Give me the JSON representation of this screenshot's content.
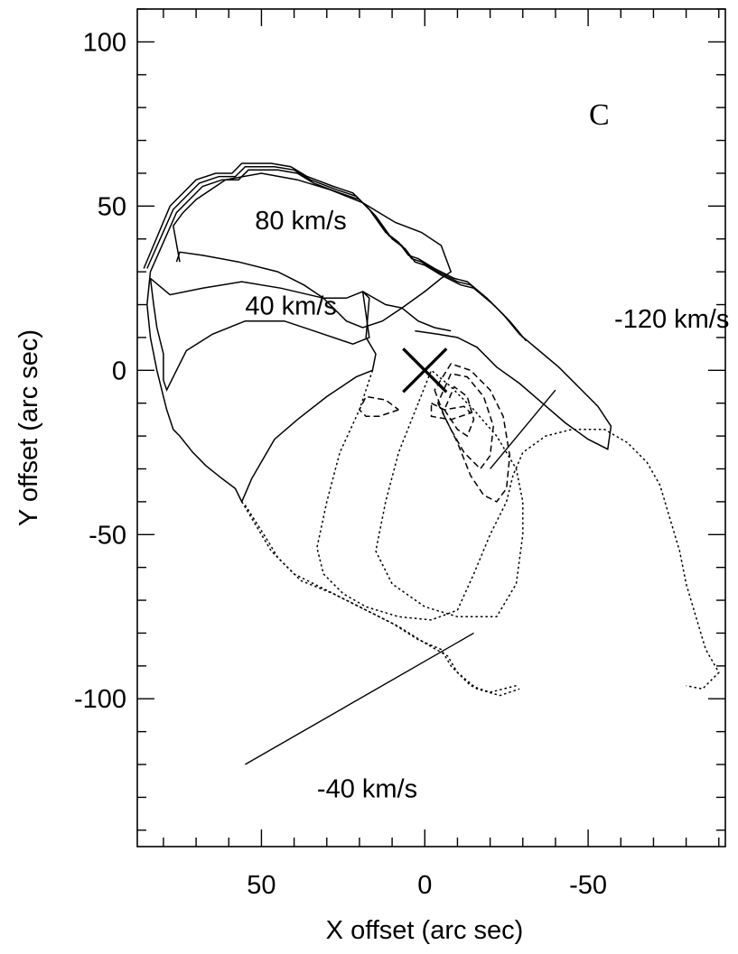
{
  "chart_data": {
    "type": "contour",
    "panel_label": "C",
    "xlabel": "X offset (arc sec)",
    "ylabel": "Y offset (arc sec)",
    "x_reversed": true,
    "xlim": [
      88,
      -92
    ],
    "ylim": [
      -145,
      110
    ],
    "x_ticks": [
      50,
      0,
      -50
    ],
    "x_tick_labels": [
      "50",
      "0",
      "-50"
    ],
    "y_ticks": [
      100,
      50,
      0,
      -50,
      -100
    ],
    "y_tick_labels": [
      "100",
      "50",
      "0",
      "-50",
      "-100"
    ],
    "source_marker": {
      "x": 0,
      "y": 0,
      "symbol": "X"
    },
    "annotations": [
      {
        "text": "80 km/s",
        "x": 52,
        "y": 43
      },
      {
        "text": "40 km/s",
        "x": 55,
        "y": 17
      },
      {
        "text": "-120 km/s",
        "x": -58,
        "y": 13
      },
      {
        "text": "-40 km/s",
        "x": 33,
        "y": -130
      }
    ],
    "leader_lines": [
      {
        "for": "-120 km/s",
        "from": [
          -40,
          -6
        ],
        "to": [
          -20,
          -30
        ]
      },
      {
        "for": "-40 km/s",
        "from": [
          55,
          -120
        ],
        "to": [
          -15,
          -80
        ]
      }
    ],
    "contours": [
      {
        "group": "positive",
        "style": "solid",
        "points": [
          [
            86,
            31
          ],
          [
            78,
            50
          ],
          [
            70,
            58
          ],
          [
            64,
            60
          ],
          [
            59,
            60
          ],
          [
            56,
            63
          ],
          [
            52,
            63
          ],
          [
            47,
            63
          ],
          [
            41,
            62
          ],
          [
            36,
            59
          ],
          [
            28,
            56
          ],
          [
            22,
            54
          ],
          [
            17,
            49
          ],
          [
            12,
            42
          ],
          [
            8,
            39
          ],
          [
            5,
            35
          ],
          [
            2,
            34
          ],
          [
            -3,
            31
          ],
          [
            -9,
            28
          ],
          [
            -13,
            27
          ],
          [
            -19,
            22
          ],
          [
            -24,
            17
          ],
          [
            -29,
            11
          ],
          [
            -35,
            6
          ],
          [
            -41,
            1
          ],
          [
            -48,
            -6
          ],
          [
            -53,
            -11
          ],
          [
            -57,
            -17
          ],
          [
            -56,
            -24
          ],
          [
            -50,
            -21
          ],
          [
            -43,
            -16
          ],
          [
            -36,
            -10
          ],
          [
            -29,
            -4
          ],
          [
            -22,
            1
          ],
          [
            -16,
            7
          ],
          [
            -10,
            10
          ],
          [
            -4,
            11
          ],
          [
            3,
            12
          ]
        ]
      },
      {
        "group": "positive",
        "style": "solid",
        "points": [
          [
            85,
            31
          ],
          [
            77,
            49
          ],
          [
            69,
            57
          ],
          [
            63,
            59
          ],
          [
            58,
            59
          ],
          [
            55,
            62
          ],
          [
            51,
            62
          ],
          [
            46,
            62
          ],
          [
            40,
            61
          ],
          [
            35,
            58
          ],
          [
            27,
            55
          ],
          [
            21,
            53
          ],
          [
            16,
            48
          ],
          [
            11,
            41
          ],
          [
            7,
            38
          ],
          [
            4,
            34
          ],
          [
            1,
            33
          ],
          [
            -4,
            30
          ],
          [
            -10,
            27
          ],
          [
            -14,
            26
          ],
          [
            -20,
            21
          ],
          [
            -25,
            16
          ],
          [
            -30,
            10
          ]
        ]
      },
      {
        "group": "positive",
        "style": "solid",
        "points": [
          [
            84,
            30
          ],
          [
            76,
            48
          ],
          [
            68,
            56
          ],
          [
            62,
            58
          ],
          [
            57,
            58
          ],
          [
            54,
            61
          ],
          [
            50,
            61
          ],
          [
            45,
            61
          ],
          [
            39,
            60
          ],
          [
            34,
            57
          ],
          [
            26,
            54
          ],
          [
            20,
            52
          ],
          [
            15,
            47
          ],
          [
            10,
            40
          ],
          [
            6,
            37
          ],
          [
            3,
            33
          ],
          [
            0,
            32
          ],
          [
            -5,
            29
          ],
          [
            -11,
            26
          ],
          [
            -15,
            25
          ],
          [
            -21,
            20
          ],
          [
            -26,
            15
          ],
          [
            -31,
            9
          ]
        ]
      },
      {
        "group": "positive",
        "style": "solid",
        "points": [
          [
            75,
            33
          ],
          [
            77,
            44
          ],
          [
            74,
            48
          ],
          [
            70,
            52
          ],
          [
            61,
            58
          ],
          [
            50,
            60
          ],
          [
            39,
            58
          ],
          [
            29,
            55
          ],
          [
            19,
            51
          ],
          [
            9,
            45
          ],
          [
            1,
            42
          ],
          [
            -5,
            38
          ],
          [
            -8,
            30
          ],
          [
            -5,
            28
          ],
          [
            0,
            24
          ],
          [
            7,
            19
          ],
          [
            13,
            15
          ],
          [
            19,
            13
          ],
          [
            24,
            15
          ],
          [
            31,
            22
          ],
          [
            37,
            26
          ],
          [
            45,
            30
          ],
          [
            57,
            33
          ],
          [
            68,
            35
          ],
          [
            75,
            36
          ],
          [
            76,
            33
          ]
        ]
      },
      {
        "group": "positive",
        "style": "solid",
        "points": [
          [
            84,
            28
          ],
          [
            83,
            20
          ],
          [
            82,
            13
          ],
          [
            80,
            5
          ],
          [
            80,
            -3
          ],
          [
            79,
            -6
          ],
          [
            76,
            0
          ],
          [
            73,
            6
          ],
          [
            65,
            11
          ],
          [
            55,
            15
          ],
          [
            43,
            15
          ],
          [
            34,
            12
          ],
          [
            22,
            8
          ],
          [
            17,
            10
          ],
          [
            19,
            24
          ],
          [
            24,
            22
          ],
          [
            31,
            22
          ],
          [
            44,
            25
          ],
          [
            56,
            27
          ],
          [
            68,
            25
          ],
          [
            78,
            23
          ],
          [
            84,
            28
          ]
        ]
      },
      {
        "group": "positive",
        "style": "solid",
        "points": [
          [
            84,
            30
          ],
          [
            85,
            20
          ],
          [
            84,
            10
          ],
          [
            82,
            0
          ],
          [
            80,
            -8
          ],
          [
            79,
            -12
          ],
          [
            77,
            -18
          ],
          [
            75,
            -20
          ],
          [
            71,
            -25
          ],
          [
            67,
            -29
          ],
          [
            62,
            -33
          ],
          [
            58,
            -36
          ],
          [
            56,
            -40
          ],
          [
            53,
            -33
          ],
          [
            46,
            -21
          ],
          [
            39,
            -15
          ],
          [
            30,
            -8
          ],
          [
            21,
            -2
          ],
          [
            16,
            0
          ],
          [
            15,
            5
          ],
          [
            18,
            10
          ],
          [
            17,
            22
          ],
          [
            19,
            24
          ],
          [
            12,
            20
          ],
          [
            7,
            19
          ],
          [
            2,
            15
          ],
          [
            -3,
            13
          ],
          [
            -8,
            12
          ]
        ]
      },
      {
        "group": "negative",
        "style": "dotted",
        "points": [
          [
            56,
            -40
          ],
          [
            50,
            -50
          ],
          [
            47,
            -55
          ],
          [
            40,
            -62
          ],
          [
            30,
            -67
          ],
          [
            20,
            -72
          ],
          [
            10,
            -77
          ],
          [
            2,
            -82
          ],
          [
            -5,
            -85
          ],
          [
            -8,
            -90
          ],
          [
            -14,
            -96
          ],
          [
            -20,
            -98
          ],
          [
            -28,
            -96
          ]
        ]
      },
      {
        "group": "negative",
        "style": "dotted",
        "points": [
          [
            55,
            -41
          ],
          [
            48,
            -52
          ],
          [
            45,
            -57
          ],
          [
            38,
            -64
          ],
          [
            28,
            -68
          ],
          [
            18,
            -73
          ],
          [
            8,
            -78
          ],
          [
            0,
            -83
          ],
          [
            -7,
            -87
          ],
          [
            -10,
            -92
          ],
          [
            -16,
            -97
          ],
          [
            -23,
            -99
          ],
          [
            -29,
            -97
          ]
        ]
      },
      {
        "group": "negative",
        "style": "dotted",
        "points": [
          [
            16,
            0
          ],
          [
            20,
            -12
          ],
          [
            26,
            -25
          ],
          [
            30,
            -40
          ],
          [
            33,
            -54
          ],
          [
            31,
            -62
          ],
          [
            25,
            -68
          ],
          [
            18,
            -72
          ],
          [
            8,
            -75
          ],
          [
            -2,
            -76
          ],
          [
            -10,
            -73
          ],
          [
            -15,
            -62
          ],
          [
            -20,
            -50
          ],
          [
            -25,
            -40
          ],
          [
            -27,
            -32
          ],
          [
            -30,
            -25
          ],
          [
            -37,
            -20
          ],
          [
            -45,
            -18
          ],
          [
            -55,
            -18
          ],
          [
            -62,
            -22
          ],
          [
            -68,
            -28
          ],
          [
            -72,
            -35
          ],
          [
            -75,
            -45
          ],
          [
            -78,
            -55
          ],
          [
            -80,
            -65
          ],
          [
            -83,
            -75
          ],
          [
            -86,
            -85
          ],
          [
            -90,
            -92
          ],
          [
            -85,
            -97
          ],
          [
            -80,
            -96
          ]
        ]
      },
      {
        "group": "negative",
        "style": "dotted",
        "points": [
          [
            2,
            -10
          ],
          [
            8,
            -25
          ],
          [
            12,
            -40
          ],
          [
            15,
            -55
          ],
          [
            10,
            -65
          ],
          [
            0,
            -72
          ],
          [
            -10,
            -75
          ],
          [
            -22,
            -75
          ],
          [
            -28,
            -65
          ],
          [
            -30,
            -50
          ],
          [
            -30,
            -40
          ],
          [
            -28,
            -30
          ],
          [
            -22,
            -20
          ],
          [
            -15,
            -12
          ],
          [
            -8,
            -5
          ],
          [
            -2,
            0
          ],
          [
            2,
            -10
          ]
        ]
      },
      {
        "group": "negative",
        "style": "dashed",
        "points": [
          [
            -3,
            -6
          ],
          [
            -6,
            -14
          ],
          [
            -10,
            -22
          ],
          [
            -14,
            -32
          ],
          [
            -18,
            -38
          ],
          [
            -22,
            -40
          ],
          [
            -25,
            -36
          ],
          [
            -26,
            -26
          ],
          [
            -24,
            -14
          ],
          [
            -20,
            -6
          ],
          [
            -14,
            0
          ],
          [
            -8,
            2
          ],
          [
            -3,
            -6
          ]
        ]
      },
      {
        "group": "negative",
        "style": "dashed",
        "points": [
          [
            -4,
            -10
          ],
          [
            -8,
            -18
          ],
          [
            -12,
            -25
          ],
          [
            -17,
            -30
          ],
          [
            -20,
            -26
          ],
          [
            -21,
            -17
          ],
          [
            -18,
            -8
          ],
          [
            -13,
            -2
          ],
          [
            -8,
            -1
          ],
          [
            -4,
            -10
          ]
        ]
      },
      {
        "group": "negative",
        "style": "dashed",
        "points": [
          [
            -6,
            -12
          ],
          [
            -10,
            -18
          ],
          [
            -13,
            -20
          ],
          [
            -15,
            -15
          ],
          [
            -13,
            -8
          ],
          [
            -9,
            -5
          ],
          [
            -6,
            -12
          ]
        ]
      },
      {
        "group": "negative",
        "style": "dashed",
        "points": [
          [
            8,
            -12
          ],
          [
            14,
            -14
          ],
          [
            18,
            -14
          ],
          [
            20,
            -12
          ],
          [
            18,
            -8
          ],
          [
            12,
            -9
          ],
          [
            8,
            -12
          ]
        ]
      },
      {
        "group": "negative",
        "style": "dashed",
        "points": [
          [
            -2,
            -10
          ],
          [
            -6,
            -12
          ],
          [
            -12,
            -11
          ],
          [
            -14,
            -13
          ],
          [
            -8,
            -15
          ],
          [
            -2,
            -14
          ],
          [
            -2,
            -10
          ]
        ]
      }
    ]
  }
}
